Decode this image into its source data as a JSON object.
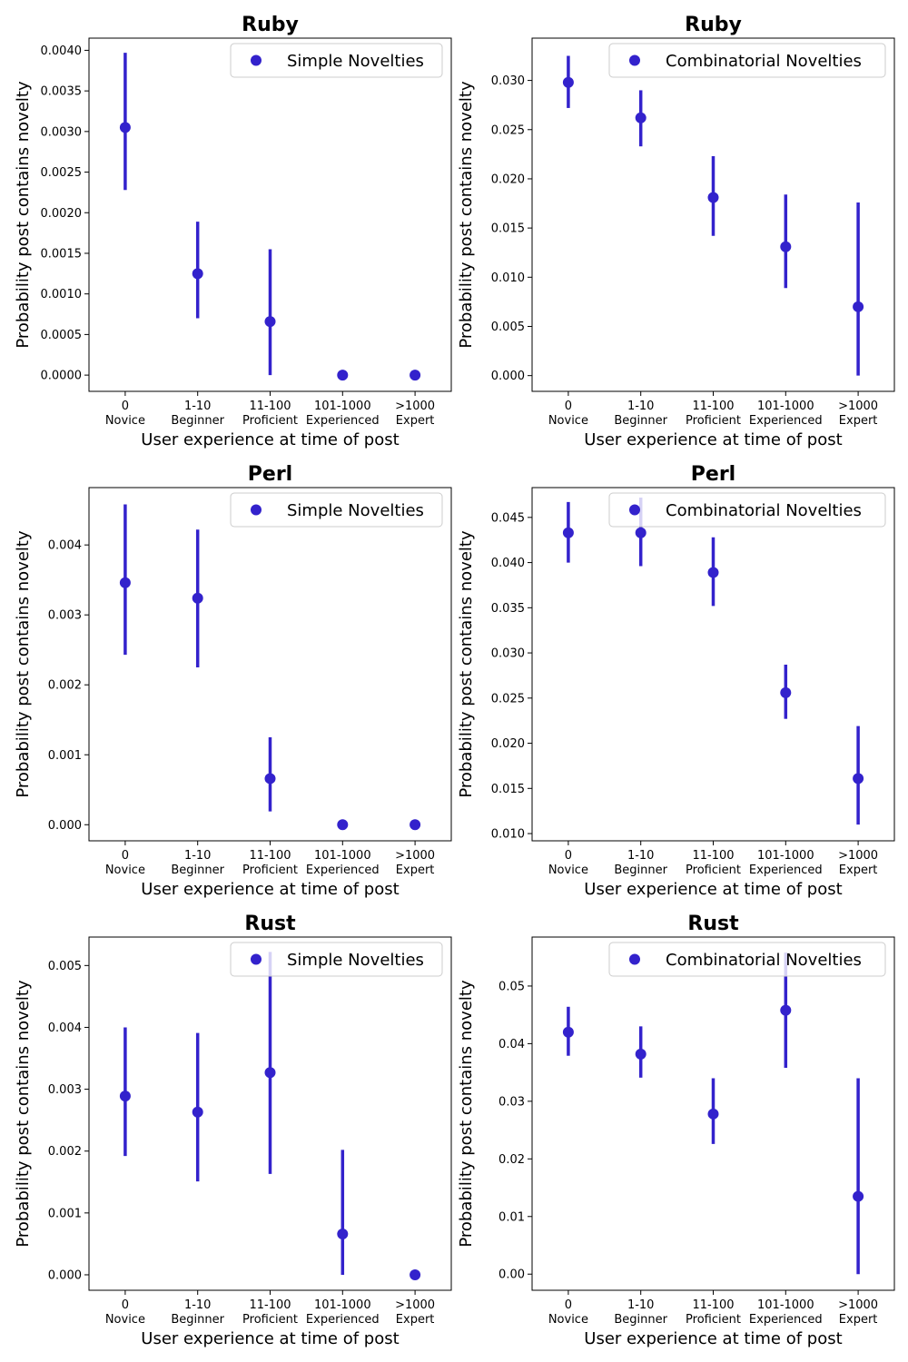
{
  "accent_color": "#3322cc",
  "chart_data": [
    {
      "type": "scatter",
      "title": "Ruby",
      "xlabel": "User experience at time of post",
      "ylabel": "Probability post contains novelty",
      "categories": [
        "0\nNovice",
        "1-10\nBeginner",
        "11-100\nProficient",
        "101-1000\nExperienced",
        ">1000\nExpert"
      ],
      "series": [
        {
          "name": "Simple Novelties",
          "values": [
            0.00305,
            0.00125,
            0.00066,
            0.0,
            0.0
          ],
          "err_low": [
            0.00228,
            0.0007,
            0.0,
            null,
            null
          ],
          "err_high": [
            0.00397,
            0.00189,
            0.00155,
            null,
            null
          ]
        }
      ],
      "ylim": [
        -0.0002,
        0.00415
      ],
      "yticks": [
        0,
        0.0005,
        0.001,
        0.0015,
        0.002,
        0.0025,
        0.003,
        0.0035,
        0.004
      ],
      "ytick_labels": [
        "0.0000",
        "0.0005",
        "0.0010",
        "0.0015",
        "0.0020",
        "0.0025",
        "0.0030",
        "0.0035",
        "0.0040"
      ],
      "legend": "top-right",
      "grid": false
    },
    {
      "type": "scatter",
      "title": "Ruby",
      "xlabel": "User experience at time of post",
      "ylabel": "Probability post contains novelty",
      "categories": [
        "0\nNovice",
        "1-10\nBeginner",
        "11-100\nProficient",
        "101-1000\nExperienced",
        ">1000\nExpert"
      ],
      "series": [
        {
          "name": "Combinatorial Novelties",
          "values": [
            0.0298,
            0.0262,
            0.0181,
            0.0131,
            0.007
          ],
          "err_low": [
            0.0272,
            0.0233,
            0.0142,
            0.0089,
            0.0
          ],
          "err_high": [
            0.0325,
            0.029,
            0.0223,
            0.0184,
            0.0176
          ]
        }
      ],
      "ylim": [
        -0.0016,
        0.0343
      ],
      "yticks": [
        0,
        0.005,
        0.01,
        0.015,
        0.02,
        0.025,
        0.03
      ],
      "ytick_labels": [
        "0.000",
        "0.005",
        "0.010",
        "0.015",
        "0.020",
        "0.025",
        "0.030"
      ],
      "legend": "top-right",
      "grid": false
    },
    {
      "type": "scatter",
      "title": "Perl",
      "xlabel": "User experience at time of post",
      "ylabel": "Probability post contains novelty",
      "categories": [
        "0\nNovice",
        "1-10\nBeginner",
        "11-100\nProficient",
        "101-1000\nExperienced",
        ">1000\nExpert"
      ],
      "series": [
        {
          "name": "Simple Novelties",
          "values": [
            0.00346,
            0.00324,
            0.00066,
            0.0,
            0.0
          ],
          "err_low": [
            0.00243,
            0.00225,
            0.00019,
            null,
            null
          ],
          "err_high": [
            0.00458,
            0.00422,
            0.00125,
            null,
            null
          ]
        }
      ],
      "ylim": [
        -0.00023,
        0.00482
      ],
      "yticks": [
        0,
        0.001,
        0.002,
        0.003,
        0.004
      ],
      "ytick_labels": [
        "0.000",
        "0.001",
        "0.002",
        "0.003",
        "0.004"
      ],
      "legend": "top-right",
      "grid": false
    },
    {
      "type": "scatter",
      "title": "Perl",
      "xlabel": "User experience at time of post",
      "ylabel": "Probability post contains novelty",
      "categories": [
        "0\nNovice",
        "1-10\nBeginner",
        "11-100\nProficient",
        "101-1000\nExperienced",
        ">1000\nExpert"
      ],
      "series": [
        {
          "name": "Combinatorial Novelties",
          "values": [
            0.0433,
            0.0433,
            0.0389,
            0.0256,
            0.0161
          ],
          "err_low": [
            0.04,
            0.0396,
            0.0352,
            0.0227,
            0.011
          ],
          "err_high": [
            0.0467,
            0.0472,
            0.0428,
            0.0287,
            0.0219
          ]
        }
      ],
      "ylim": [
        0.0092,
        0.0483
      ],
      "yticks": [
        0.01,
        0.015,
        0.02,
        0.025,
        0.03,
        0.035,
        0.04,
        0.045
      ],
      "ytick_labels": [
        "0.010",
        "0.015",
        "0.020",
        "0.025",
        "0.030",
        "0.035",
        "0.040",
        "0.045"
      ],
      "legend": "top-right",
      "grid": false
    },
    {
      "type": "scatter",
      "title": "Rust",
      "xlabel": "User experience at time of post",
      "ylabel": "Probability post contains novelty",
      "categories": [
        "0\nNovice",
        "1-10\nBeginner",
        "11-100\nProficient",
        "101-1000\nExperienced",
        ">1000\nExpert"
      ],
      "series": [
        {
          "name": "Simple Novelties",
          "values": [
            0.00289,
            0.00263,
            0.00327,
            0.00066,
            0.0
          ],
          "err_low": [
            0.00192,
            0.00151,
            0.00163,
            0.0,
            null
          ],
          "err_high": [
            0.004,
            0.00391,
            0.00522,
            0.00202,
            null
          ]
        }
      ],
      "ylim": [
        -0.00025,
        0.00546
      ],
      "yticks": [
        0,
        0.001,
        0.002,
        0.003,
        0.004,
        0.005
      ],
      "ytick_labels": [
        "0.000",
        "0.001",
        "0.002",
        "0.003",
        "0.004",
        "0.005"
      ],
      "legend": "top-right",
      "grid": false
    },
    {
      "type": "scatter",
      "title": "Rust",
      "xlabel": "User experience at time of post",
      "ylabel": "Probability post contains novelty",
      "categories": [
        "0\nNovice",
        "1-10\nBeginner",
        "11-100\nProficient",
        "101-1000\nExperienced",
        ">1000\nExpert"
      ],
      "series": [
        {
          "name": "Combinatorial Novelties",
          "values": [
            0.042,
            0.0382,
            0.0278,
            0.0458,
            0.0135
          ],
          "err_low": [
            0.0379,
            0.0341,
            0.0226,
            0.0358,
            0.0
          ],
          "err_high": [
            0.0464,
            0.043,
            0.034,
            0.0558,
            0.034
          ]
        }
      ],
      "ylim": [
        -0.0028,
        0.0585
      ],
      "yticks": [
        0,
        0.01,
        0.02,
        0.03,
        0.04,
        0.05
      ],
      "ytick_labels": [
        "0.00",
        "0.01",
        "0.02",
        "0.03",
        "0.04",
        "0.05"
      ],
      "legend": "top-right",
      "grid": false
    }
  ]
}
